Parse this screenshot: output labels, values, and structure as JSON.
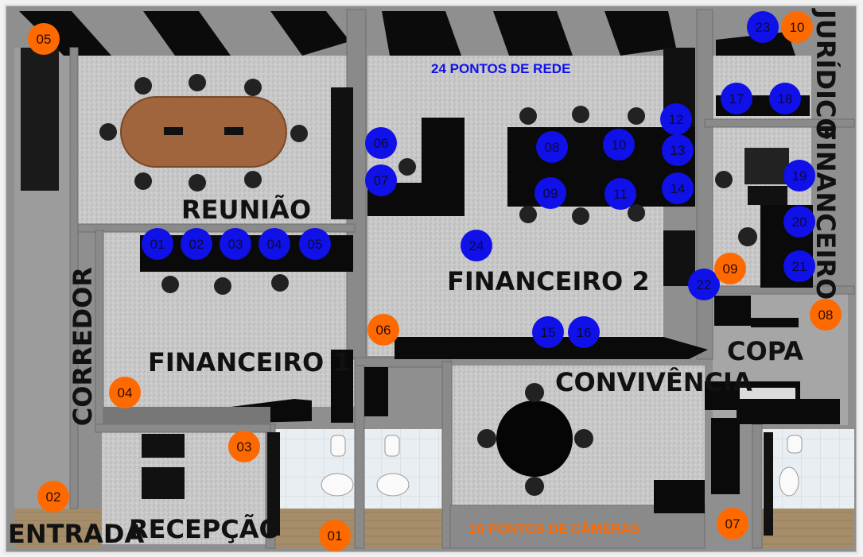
{
  "rooms": {
    "reuniao": "REUNIÃO",
    "financeiro1": "FINANCEIRO 1",
    "financeiro2": "FINANCEIRO 2",
    "financeiro3": "FINANCEIRO 3",
    "juridico": "JURÍDICO",
    "corredor": "CORREDOR",
    "entrada": "ENTRADA",
    "recepcao": "RECEPÇÃO",
    "convivencia": "CONVIVÊNCIA",
    "copa": "COPA"
  },
  "notes": {
    "network": "24 PONTOS DE REDE",
    "cameras": "10 PONTOS DE CÂMERAS"
  },
  "network_points": [
    "01",
    "02",
    "03",
    "04",
    "05",
    "06",
    "07",
    "08",
    "09",
    "10",
    "11",
    "12",
    "13",
    "14",
    "15",
    "16",
    "17",
    "18",
    "19",
    "20",
    "21",
    "22",
    "23",
    "24"
  ],
  "camera_points": [
    "01",
    "02",
    "03",
    "04",
    "05",
    "06",
    "07",
    "08",
    "09",
    "10"
  ],
  "colors": {
    "network": "#1010e8",
    "camera": "#ff6a00",
    "wall": "#9a9a9a",
    "floor": "#c8c8c8",
    "furniture": "#0a0a0a",
    "table_wood": "#a0653c"
  }
}
